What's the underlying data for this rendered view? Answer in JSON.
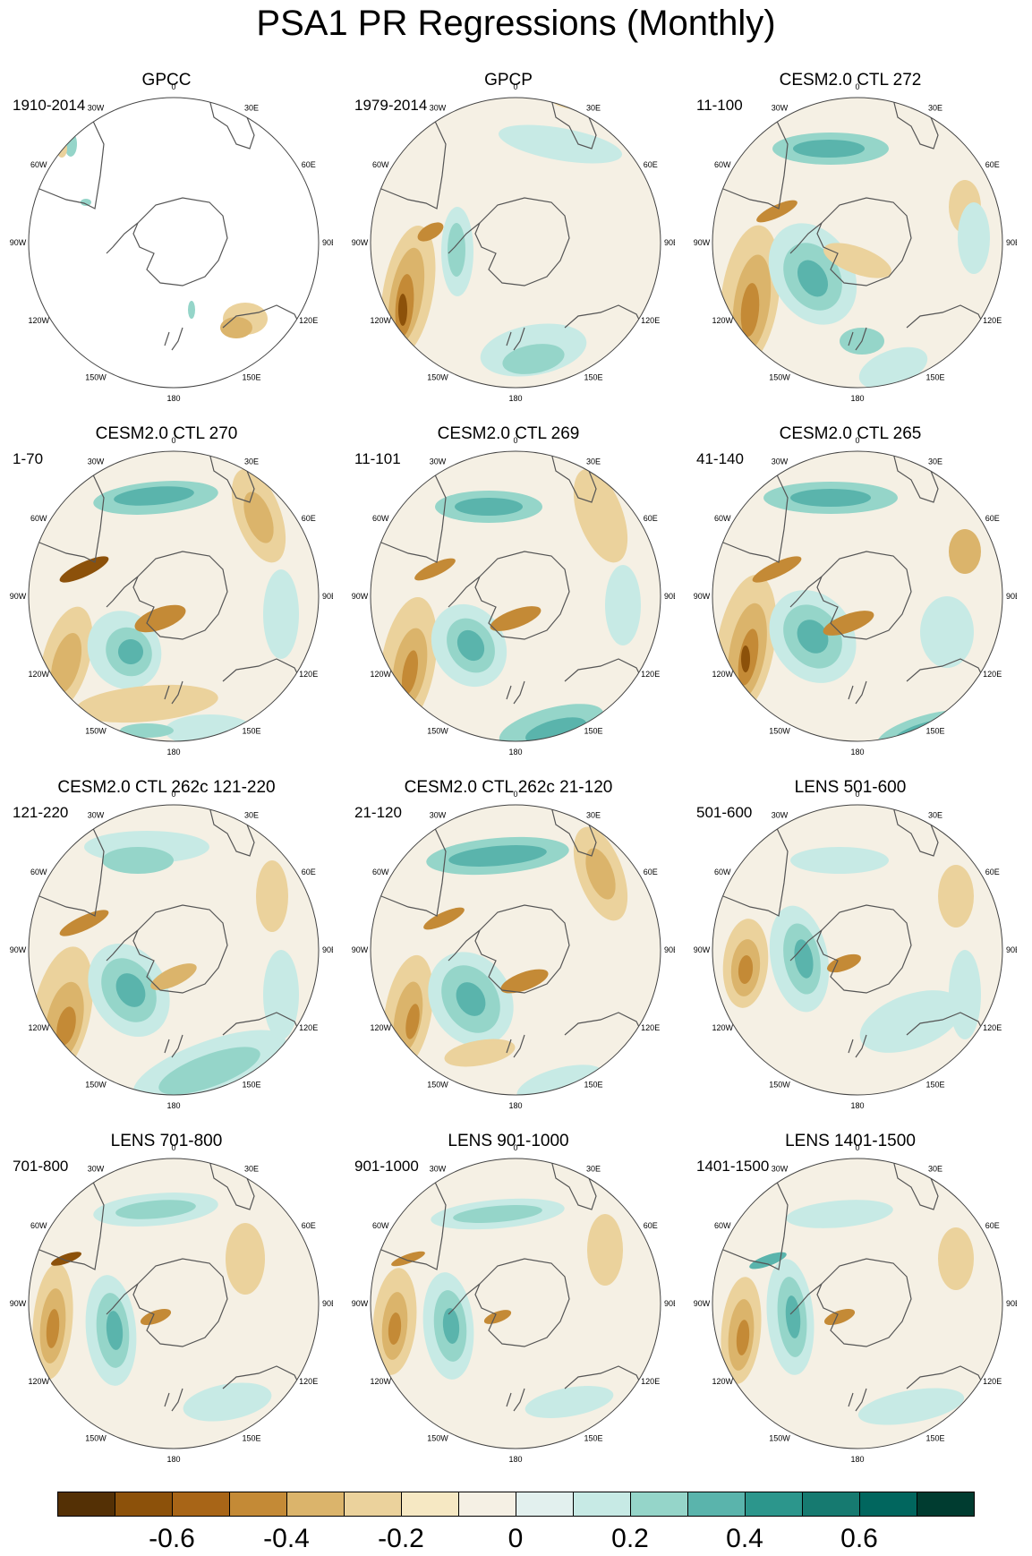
{
  "title": "PSA1 PR Regressions (Monthly)",
  "panels": [
    {
      "title": "GPCC",
      "period": "1910-2014"
    },
    {
      "title": "GPCP",
      "period": "1979-2014"
    },
    {
      "title": "CESM2.0 CTL 272",
      "period": "11-100"
    },
    {
      "title": "CESM2.0 CTL 270",
      "period": "1-70"
    },
    {
      "title": "CESM2.0 CTL 269",
      "period": "11-101"
    },
    {
      "title": "CESM2.0 CTL 265",
      "period": "41-140"
    },
    {
      "title": "CESM2.0 CTL 262c 121-220",
      "period": "121-220"
    },
    {
      "title": "CESM2.0 CTL 262c 21-120",
      "period": "21-120"
    },
    {
      "title": "LENS 501-600",
      "period": "501-600"
    },
    {
      "title": "LENS 701-800",
      "period": "701-800"
    },
    {
      "title": "LENS 901-1000",
      "period": "901-1000"
    },
    {
      "title": "LENS 1401-1500",
      "period": "1401-1500"
    }
  ],
  "longitude_labels": {
    "0": "0",
    "30E": "30E",
    "60E": "60E",
    "90E": "90E",
    "120E": "120E",
    "150E": "150E",
    "180": "180",
    "150W": "150W",
    "120W": "120W",
    "90W": "90W",
    "60W": "60W",
    "30W": "30W"
  },
  "colorbar": {
    "colors": [
      "#543005",
      "#8c510a",
      "#a86517",
      "#c48a36",
      "#dbb46b",
      "#ebd29c",
      "#f6e8c3",
      "#f5f0e4",
      "#e2f0ee",
      "#c7eae5",
      "#95d5c9",
      "#5ab4ac",
      "#2c968c",
      "#167a70",
      "#01665e",
      "#003c30"
    ],
    "tick_labels": [
      "-0.6",
      "-0.4",
      "-0.2",
      "0",
      "0.2",
      "0.4",
      "0.6"
    ]
  },
  "colors": {
    "brown": "#8c510a",
    "teal": "#01665e",
    "neutral": "#f5f0e4"
  }
}
